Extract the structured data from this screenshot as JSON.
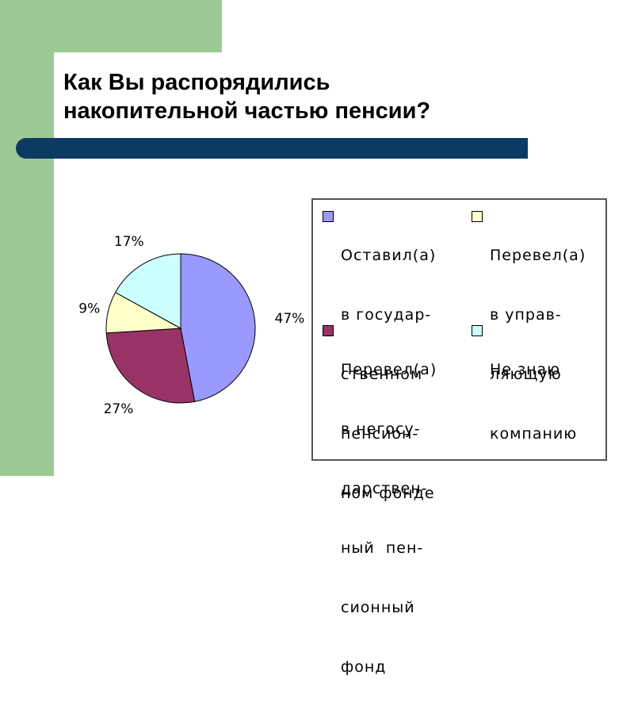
{
  "slide": {
    "title_lines": [
      "Как Вы распорядились",
      "накопительной частью пенсии?"
    ]
  },
  "colors": {
    "bar": "#0d3a63",
    "green": "#9cc994"
  },
  "chart_data": {
    "type": "pie",
    "title": "",
    "slices": [
      {
        "label": "Оставил(а) в государ-ственном пенсион-ном фонде",
        "value": 47,
        "display": "47%",
        "color": "#9999ff"
      },
      {
        "label": "Перевел(а) в негосу-дарствен-ный пен-сионный фонд",
        "value": 27,
        "display": "27%",
        "color": "#993366"
      },
      {
        "label": "Перевел(а) в управ-ляющую компанию",
        "value": 9,
        "display": "9%",
        "color": "#ffffcc"
      },
      {
        "label": "Не знаю",
        "value": 17,
        "display": "17%",
        "color": "#ccffff"
      }
    ],
    "legend_position": "right"
  },
  "legend": {
    "items": [
      {
        "lines": [
          "Оставил(а)",
          "в государ-",
          "ственном",
          "пенсион-",
          "ном фонде"
        ]
      },
      {
        "lines": [
          "Перевел(а)",
          "в управ-",
          "ляющую",
          "компанию"
        ]
      },
      {
        "lines": [
          "Перевел(а)",
          "в негосу-",
          "дарствен-",
          "ный  пен-",
          "сионный",
          "фонд"
        ]
      },
      {
        "lines": [
          "Не знаю"
        ]
      }
    ]
  }
}
